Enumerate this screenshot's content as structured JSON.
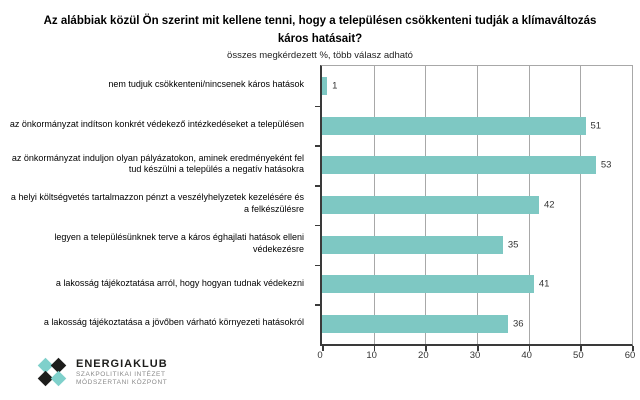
{
  "chart_data": {
    "type": "bar",
    "orientation": "horizontal",
    "title": "Az alábbiak közül Ön szerint mit kellene tenni, hogy a településen csökkenteni tudják a klímaváltozás káros hatásait?",
    "subtitle": "összes megkérdezett %, több válasz adható",
    "categories": [
      "nem tudjuk csökkenteni/nincsenek káros hatások",
      "az önkormányzat indítson konkrét védekező intézkedéseket a településen",
      "az önkormányzat induljon olyan pályázatokon, aminek eredményeként fel tud készülni a település a negatív hatásokra",
      "a helyi költségvetés tartalmazzon pénzt a veszélyhelyzetek kezelésére és a felkészülésre",
      "legyen a településünknek terve a káros éghajlati hatások elleni védekezésre",
      "a lakosság tájékoztatása arról, hogy hogyan tudnak védekezni",
      "a lakosság tájékoztatása a jövőben várható környezeti hatásokról"
    ],
    "values": [
      1,
      51,
      53,
      42,
      35,
      41,
      36
    ],
    "xlim": [
      0,
      60
    ],
    "x_ticks": [
      0,
      10,
      20,
      30,
      40,
      50,
      60
    ],
    "grid": true,
    "legend": "none",
    "bar_color": "#7ec8c3",
    "gridline_color": "#a8a8a8",
    "axis_color": "#3a3a3a"
  },
  "footer": {
    "logo_name": "ENERGIAKLUB",
    "logo_line1": "SZAKPOLITIKAI INTÉZET",
    "logo_line2": "MÓDSZERTANI KÖZPONT",
    "logo_teal": "#7fd0cb",
    "logo_dark": "#1d1d1b"
  }
}
